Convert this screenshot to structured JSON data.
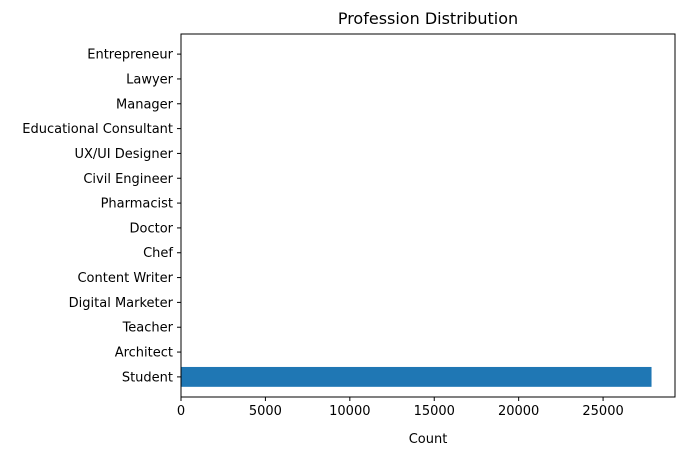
{
  "chart_data": {
    "type": "bar",
    "orientation": "horizontal",
    "title": "Profession Distribution",
    "xlabel": "Count",
    "ylabel": "",
    "categories": [
      "Student",
      "Architect",
      "Teacher",
      "Digital Marketer",
      "Content Writer",
      "Chef",
      "Doctor",
      "Pharmacist",
      "Civil Engineer",
      "UX/UI Designer",
      "Educational Consultant",
      "Manager",
      "Lawyer",
      "Entrepreneur"
    ],
    "values": [
      27870,
      8,
      6,
      3,
      2,
      2,
      2,
      2,
      1,
      1,
      1,
      1,
      1,
      1
    ],
    "xlim": [
      0,
      29260
    ],
    "xticks": [
      0,
      5000,
      10000,
      15000,
      20000,
      25000
    ],
    "grid": false,
    "bar_color": "#1f77b4"
  }
}
